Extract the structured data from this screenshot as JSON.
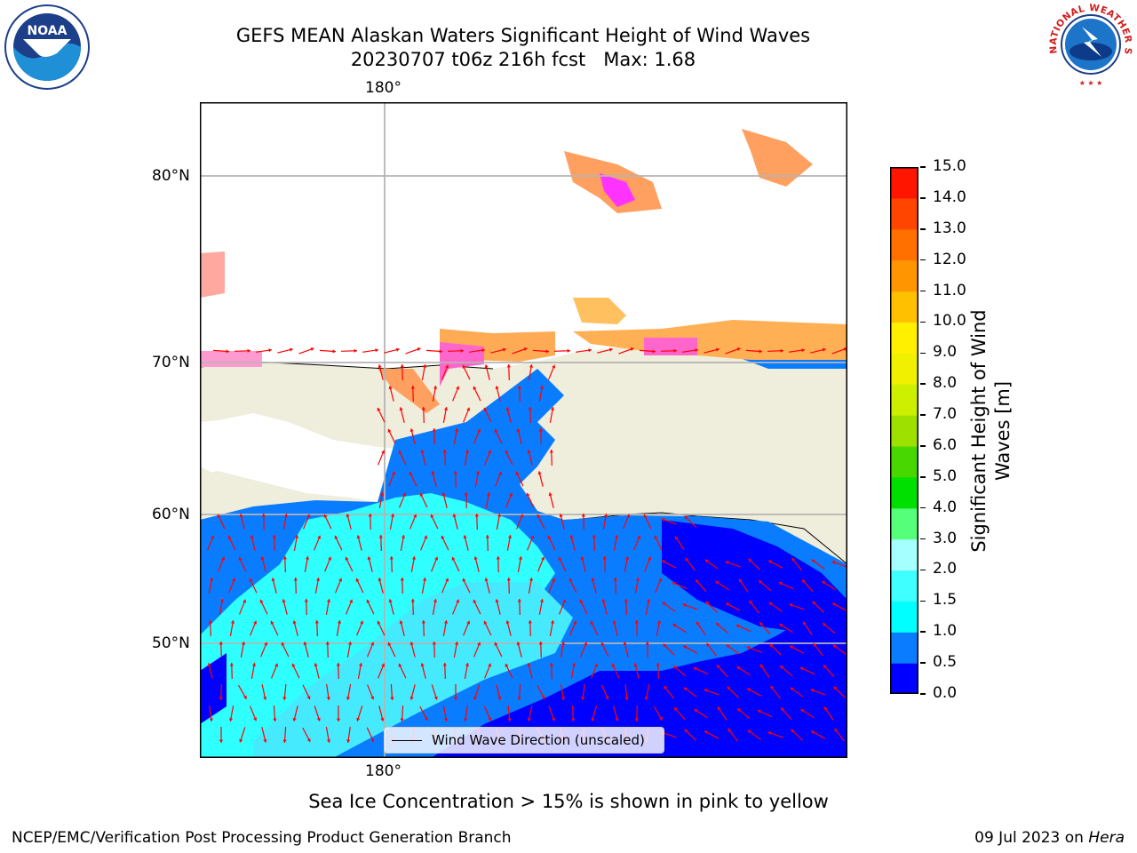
{
  "header": {
    "title_line1": "GEFS MEAN Alaskan Waters Significant Height of Wind Waves",
    "title_line2": "20230707 t06z 216h fcst   Max: 1.68"
  },
  "logos": {
    "noaa_text": "NOAA",
    "nws_text": "NATIONAL WEATHER SERVICE"
  },
  "map": {
    "lon_label_top": "180°",
    "lon_label_bottom": "180°",
    "lat_labels": [
      "80°N",
      "70°N",
      "60°N",
      "50°N"
    ],
    "land_color": "#efeddc",
    "arrow_color": "#ff0000"
  },
  "legend": {
    "label": "Wind Wave Direction (unscaled)"
  },
  "colorbar": {
    "label_line1": "Significant Height of Wind",
    "label_line2": "Waves [m]",
    "ticks": [
      "0.0",
      "0.5",
      "1.0",
      "1.5",
      "2.0",
      "3.0",
      "4.0",
      "5.0",
      "6.0",
      "7.0",
      "8.0",
      "9.0",
      "10.0",
      "11.0",
      "12.0",
      "13.0",
      "14.0",
      "15.0"
    ],
    "colors": [
      "#0000ff",
      "#0a7cff",
      "#00ffff",
      "#3fffff",
      "#a6ffff",
      "#55ff7a",
      "#00e000",
      "#48d800",
      "#9ee000",
      "#ccf000",
      "#f0f000",
      "#fff000",
      "#ffc000",
      "#ff9500",
      "#ff7000",
      "#ff4500",
      "#ff1500"
    ]
  },
  "footer": {
    "ice_note": "Sea Ice Concentration > 15% is shown in pink to yellow",
    "branch": "NCEP/EMC/Verification Post Processing Product Generation Branch",
    "date": "09 Jul 2023 on",
    "machine": "Hera"
  }
}
